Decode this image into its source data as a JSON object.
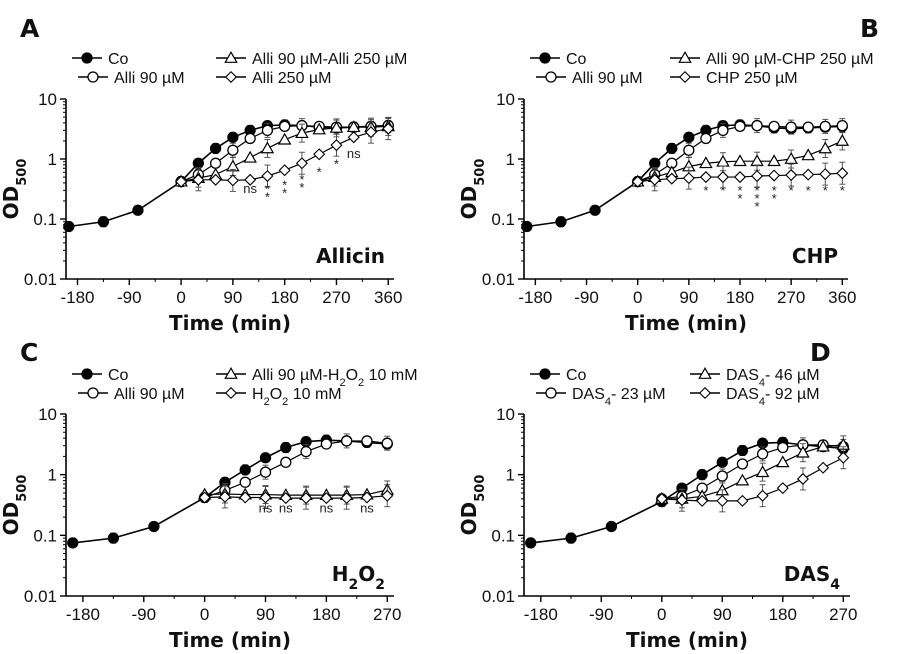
{
  "chart_data": [
    {
      "panel": "A",
      "type": "line",
      "inset_label": "Allicin",
      "xlabel": "Time (min)",
      "ylabel": "OD500",
      "yscale": "log",
      "ylim": [
        0.01,
        10
      ],
      "xlim": [
        -200,
        370
      ],
      "xticks": [
        -180,
        -90,
        0,
        90,
        180,
        270,
        360
      ],
      "yticks": [
        "0.01",
        "0.1",
        "1",
        "10"
      ],
      "series": [
        {
          "name": "Co",
          "marker": "filled-circle",
          "x": [
            -195,
            -135,
            -75,
            0,
            30,
            60,
            90,
            120,
            150,
            180,
            210,
            240,
            270,
            300,
            330,
            360
          ],
          "y": [
            0.075,
            0.09,
            0.14,
            0.42,
            0.85,
            1.5,
            2.3,
            3.0,
            3.6,
            3.7,
            3.6,
            3.4,
            3.3,
            3.4,
            3.5,
            3.6
          ]
        },
        {
          "name": "Alli 90 µM",
          "marker": "open-circle",
          "x": [
            0,
            30,
            60,
            90,
            120,
            150,
            180,
            210,
            240,
            270,
            300,
            330,
            360
          ],
          "y": [
            0.42,
            0.55,
            0.85,
            1.4,
            2.2,
            3.0,
            3.5,
            3.6,
            3.5,
            3.4,
            3.4,
            3.5,
            3.6
          ]
        },
        {
          "name": "Alli 90 µM-Alli 250 µM",
          "marker": "open-triangle",
          "x": [
            0,
            30,
            60,
            90,
            120,
            150,
            180,
            210,
            240,
            270,
            300,
            330,
            360
          ],
          "y": [
            0.42,
            0.48,
            0.55,
            0.75,
            1.05,
            1.5,
            2.1,
            2.7,
            3.1,
            3.3,
            3.4,
            3.4,
            3.5
          ]
        },
        {
          "name": "Alli 250 µM",
          "marker": "open-diamond",
          "x": [
            0,
            30,
            60,
            90,
            120,
            150,
            180,
            210,
            240,
            270,
            300,
            330,
            360
          ],
          "y": [
            0.42,
            0.45,
            0.45,
            0.44,
            0.45,
            0.52,
            0.65,
            0.85,
            1.2,
            1.7,
            2.3,
            2.8,
            3.2
          ]
        }
      ],
      "annotations": [
        {
          "text": "ns",
          "x": 120,
          "y": 0.34
        },
        {
          "text": "**",
          "x": 150,
          "y": 0.36
        },
        {
          "text": "**",
          "x": 180,
          "y": 0.42
        },
        {
          "text": "**",
          "x": 210,
          "y": 0.52
        },
        {
          "text": "*",
          "x": 240,
          "y": 0.7
        },
        {
          "text": "*",
          "x": 270,
          "y": 0.95
        },
        {
          "text": "ns",
          "x": 300,
          "y": 1.3
        }
      ]
    },
    {
      "panel": "B",
      "type": "line",
      "inset_label": "CHP",
      "xlabel": "Time (min)",
      "ylabel": "OD500",
      "yscale": "log",
      "ylim": [
        0.01,
        10
      ],
      "xlim": [
        -200,
        370
      ],
      "xticks": [
        -180,
        -90,
        0,
        90,
        180,
        270,
        360
      ],
      "yticks": [
        "0.01",
        "0.1",
        "1",
        "10"
      ],
      "series": [
        {
          "name": "Co",
          "marker": "filled-circle",
          "x": [
            -195,
            -135,
            -75,
            0,
            30,
            60,
            90,
            120,
            150,
            180,
            210,
            240,
            270,
            300,
            330,
            360
          ],
          "y": [
            0.075,
            0.09,
            0.14,
            0.42,
            0.85,
            1.5,
            2.3,
            3.0,
            3.6,
            3.7,
            3.6,
            3.3,
            3.2,
            3.3,
            3.4,
            3.5
          ]
        },
        {
          "name": "Alli 90 µM",
          "marker": "open-circle",
          "x": [
            0,
            30,
            60,
            90,
            120,
            150,
            180,
            210,
            240,
            270,
            300,
            330,
            360
          ],
          "y": [
            0.42,
            0.55,
            0.85,
            1.4,
            2.2,
            3.0,
            3.5,
            3.6,
            3.5,
            3.4,
            3.4,
            3.5,
            3.6
          ]
        },
        {
          "name": "Alli 90 µM-CHP 250 µM",
          "marker": "open-triangle",
          "x": [
            0,
            30,
            60,
            90,
            120,
            150,
            180,
            210,
            240,
            270,
            300,
            330,
            360
          ],
          "y": [
            0.42,
            0.5,
            0.6,
            0.75,
            0.85,
            0.9,
            0.92,
            0.92,
            0.92,
            1.0,
            1.15,
            1.5,
            2.0
          ]
        },
        {
          "name": "CHP 250 µM",
          "marker": "open-diamond",
          "x": [
            0,
            30,
            60,
            90,
            120,
            150,
            180,
            210,
            240,
            270,
            300,
            330,
            360
          ],
          "y": [
            0.42,
            0.45,
            0.47,
            0.48,
            0.5,
            0.5,
            0.5,
            0.52,
            0.53,
            0.54,
            0.55,
            0.56,
            0.58
          ]
        }
      ],
      "annotations": [
        {
          "text": "*",
          "x": 120,
          "y": 0.34
        },
        {
          "text": "*",
          "x": 150,
          "y": 0.34
        },
        {
          "text": "**",
          "x": 180,
          "y": 0.34
        },
        {
          "text": "***",
          "x": 210,
          "y": 0.34
        },
        {
          "text": "**",
          "x": 240,
          "y": 0.34
        },
        {
          "text": "*",
          "x": 270,
          "y": 0.34
        },
        {
          "text": "*",
          "x": 300,
          "y": 0.34
        },
        {
          "text": "*",
          "x": 330,
          "y": 0.34
        },
        {
          "text": "*",
          "x": 360,
          "y": 0.34
        }
      ]
    },
    {
      "panel": "C",
      "type": "line",
      "inset_label": "H2O2",
      "xlabel": "Time (min)",
      "ylabel": "OD500",
      "yscale": "log",
      "ylim": [
        0.01,
        10
      ],
      "xlim": [
        -205,
        280
      ],
      "xticks": [
        -180,
        -90,
        0,
        90,
        180,
        270
      ],
      "yticks": [
        "0.01",
        "0.1",
        "1",
        "10"
      ],
      "series": [
        {
          "name": "Co",
          "marker": "filled-circle",
          "x": [
            -195,
            -135,
            -75,
            0,
            30,
            60,
            90,
            120,
            150,
            180,
            210,
            240,
            270
          ],
          "y": [
            0.075,
            0.09,
            0.14,
            0.42,
            0.75,
            1.2,
            1.9,
            2.8,
            3.5,
            3.7,
            3.6,
            3.4,
            3.2
          ]
        },
        {
          "name": "Alli 90 µM",
          "marker": "open-circle",
          "x": [
            0,
            30,
            60,
            90,
            120,
            150,
            180,
            210,
            240,
            270
          ],
          "y": [
            0.42,
            0.55,
            0.75,
            1.1,
            1.6,
            2.4,
            3.2,
            3.6,
            3.6,
            3.3
          ]
        },
        {
          "name": "Alli 90 µM-H2O2 10 mM",
          "marker": "open-triangle",
          "x": [
            0,
            30,
            60,
            90,
            120,
            150,
            180,
            210,
            240,
            270
          ],
          "y": [
            0.47,
            0.48,
            0.47,
            0.47,
            0.46,
            0.46,
            0.46,
            0.46,
            0.47,
            0.56
          ]
        },
        {
          "name": "H2O2 10 mM",
          "marker": "open-diamond",
          "x": [
            0,
            30,
            60,
            90,
            120,
            150,
            180,
            210,
            240,
            270
          ],
          "y": [
            0.42,
            0.43,
            0.42,
            0.42,
            0.41,
            0.41,
            0.41,
            0.41,
            0.42,
            0.45
          ]
        }
      ],
      "annotations": [
        {
          "text": "ns",
          "x": 90,
          "y": 0.3
        },
        {
          "text": "ns",
          "x": 120,
          "y": 0.3
        },
        {
          "text": "ns",
          "x": 180,
          "y": 0.3
        },
        {
          "text": "ns",
          "x": 240,
          "y": 0.3
        }
      ]
    },
    {
      "panel": "D",
      "type": "line",
      "inset_label": "DAS4",
      "xlabel": "Time (min)",
      "ylabel": "OD500",
      "yscale": "log",
      "ylim": [
        0.01,
        10
      ],
      "xlim": [
        -205,
        280
      ],
      "xticks": [
        -180,
        -90,
        0,
        90,
        180,
        270
      ],
      "yticks": [
        "0.01",
        "0.1",
        "1",
        "10"
      ],
      "series": [
        {
          "name": "Co",
          "marker": "filled-circle",
          "x": [
            -195,
            -135,
            -75,
            0,
            30,
            60,
            90,
            120,
            150,
            180,
            210,
            240,
            270
          ],
          "y": [
            0.075,
            0.09,
            0.14,
            0.36,
            0.6,
            1.0,
            1.6,
            2.5,
            3.3,
            3.4,
            3.1,
            2.9,
            2.7
          ]
        },
        {
          "name": "DAS4- 23 µM",
          "marker": "open-circle",
          "x": [
            0,
            30,
            60,
            90,
            120,
            150,
            180,
            210,
            240,
            270
          ],
          "y": [
            0.4,
            0.44,
            0.6,
            0.95,
            1.5,
            2.2,
            2.8,
            3.1,
            3.1,
            2.9
          ]
        },
        {
          "name": "DAS4- 46 µM",
          "marker": "open-triangle",
          "x": [
            0,
            30,
            60,
            90,
            120,
            150,
            180,
            210,
            240,
            270
          ],
          "y": [
            0.4,
            0.4,
            0.44,
            0.55,
            0.8,
            1.1,
            1.6,
            2.3,
            2.9,
            3.1
          ]
        },
        {
          "name": "DAS4- 92 µM",
          "marker": "open-diamond",
          "x": [
            0,
            30,
            60,
            90,
            120,
            150,
            180,
            210,
            240,
            270
          ],
          "y": [
            0.4,
            0.38,
            0.37,
            0.37,
            0.37,
            0.45,
            0.6,
            0.85,
            1.3,
            1.9
          ]
        }
      ],
      "annotations": []
    }
  ]
}
